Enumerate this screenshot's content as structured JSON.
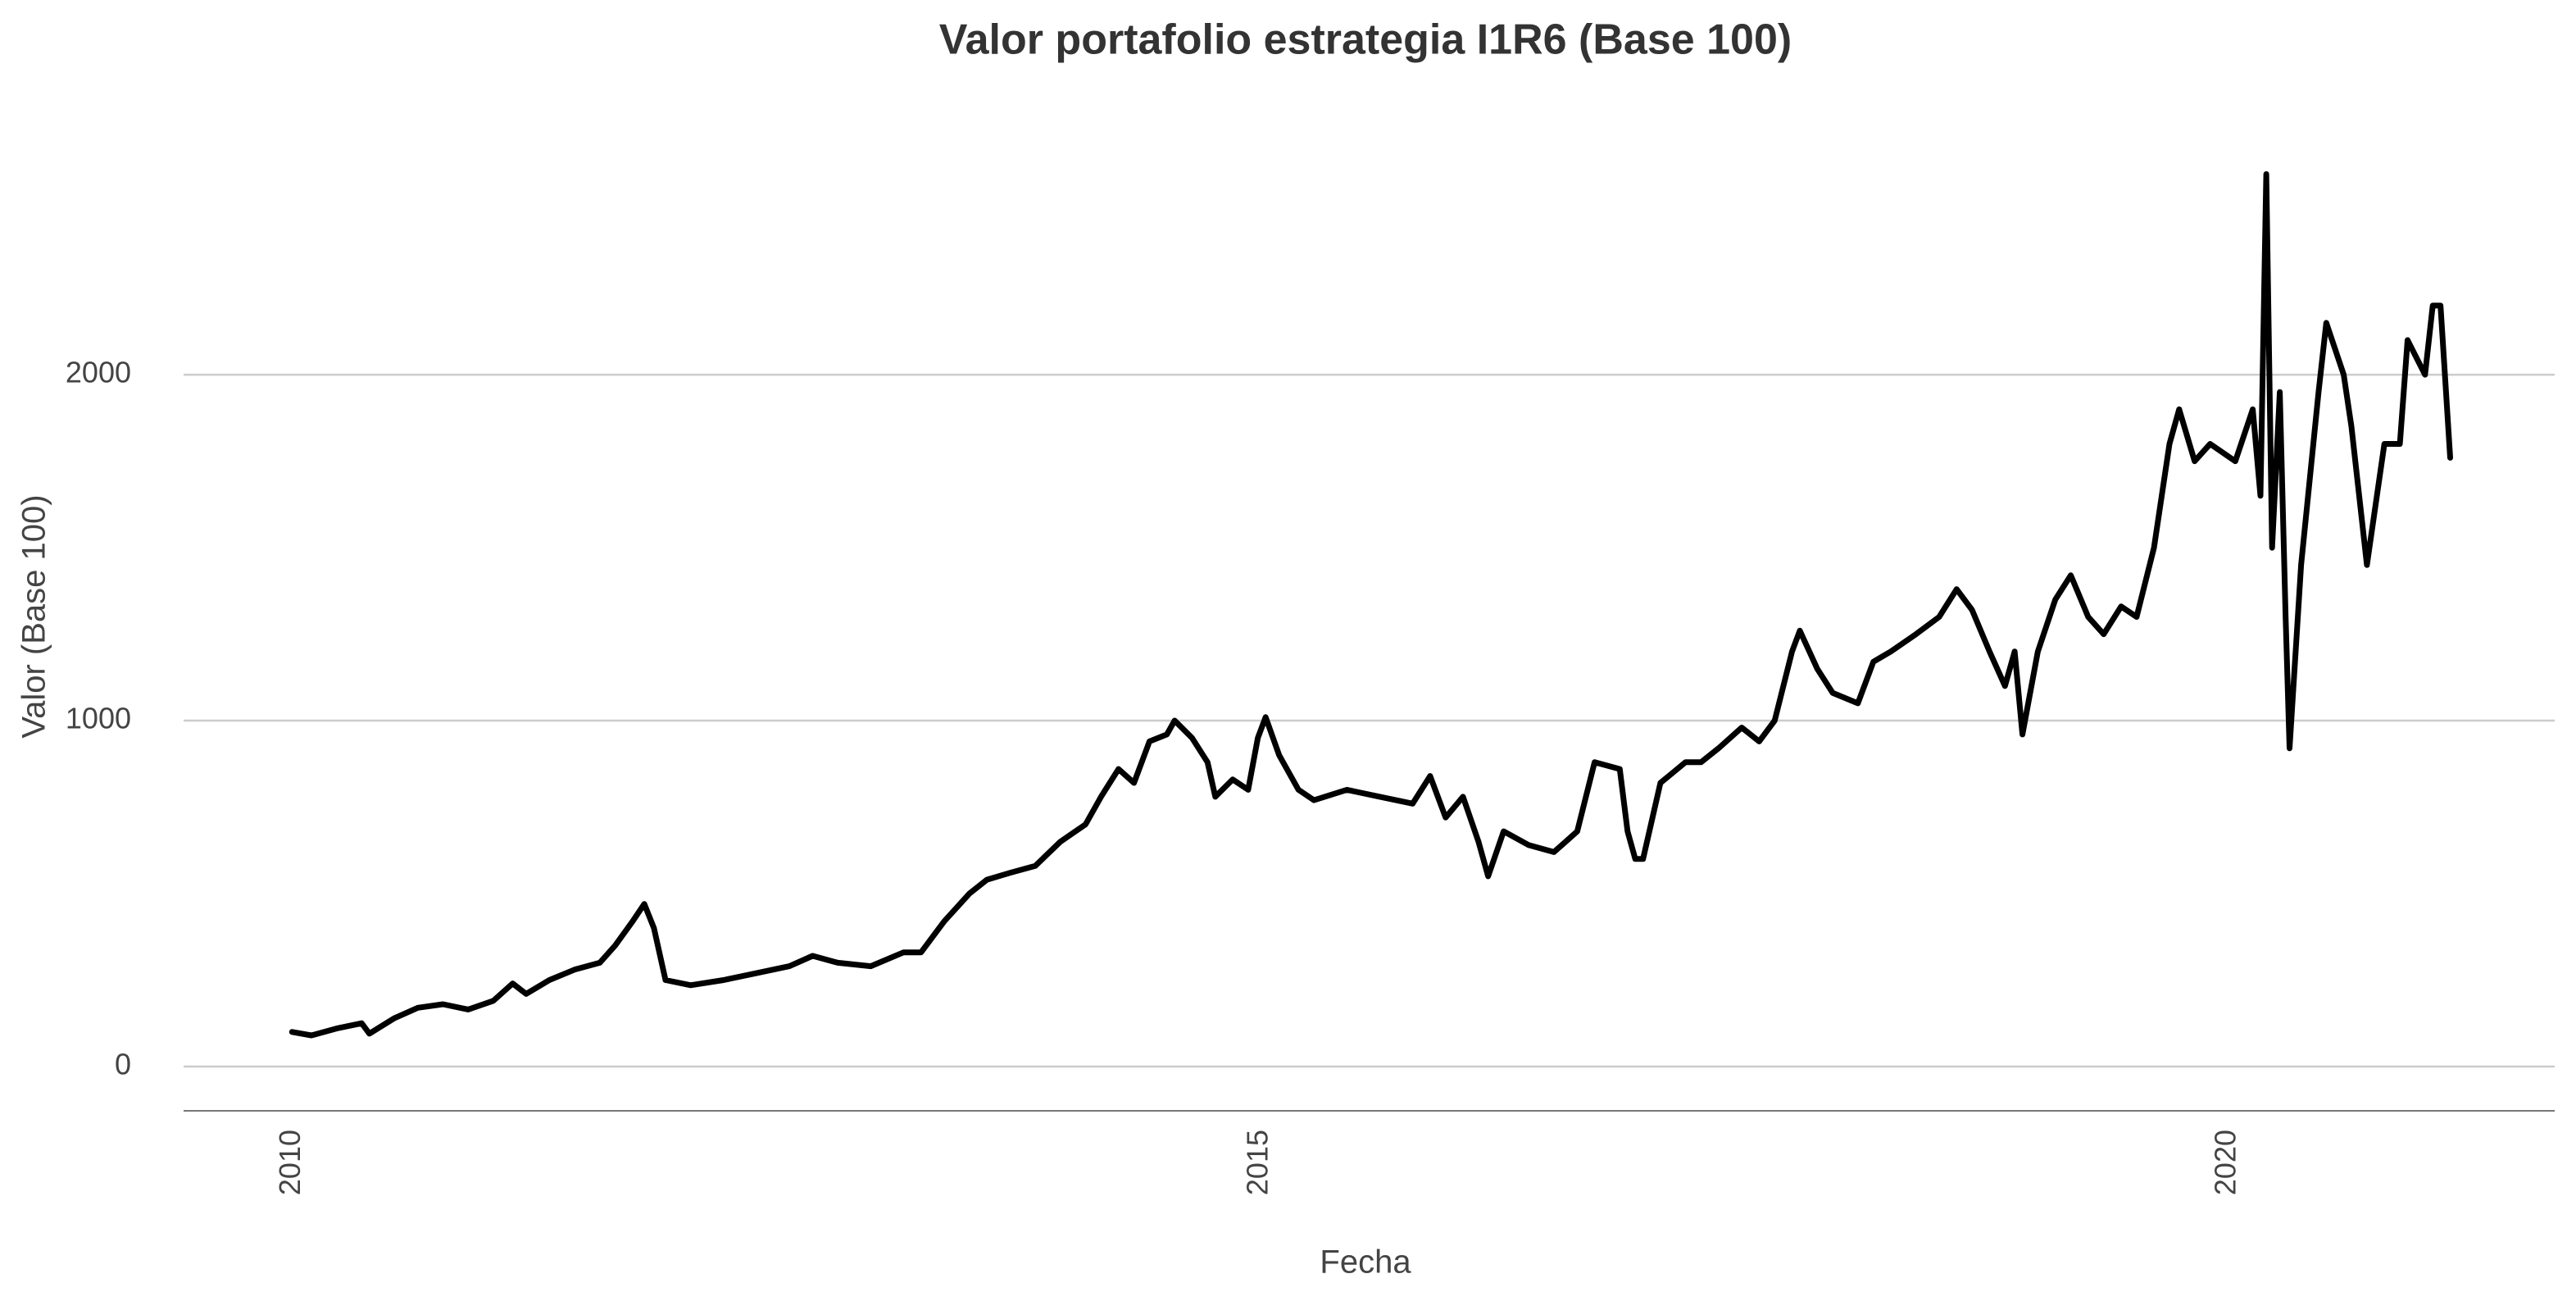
{
  "chart_data": {
    "type": "line",
    "title": "Valor portafolio estrategia I1R6 (Base 100)",
    "x_label": "Fecha",
    "y_label": "Valor (Base 100)",
    "grid": true,
    "xlim": [
      2009.44,
      2021.69
    ],
    "xticks": [
      2010,
      2015,
      2020
    ],
    "ylim": [
      -128,
      2633
    ],
    "yticks": [
      0,
      1000,
      2000
    ],
    "x": [
      2010.0,
      2010.1,
      2010.23,
      2010.36,
      2010.4,
      2010.53,
      2010.65,
      2010.78,
      2010.91,
      2011.04,
      2011.14,
      2011.21,
      2011.33,
      2011.46,
      2011.59,
      2011.67,
      2011.76,
      2011.82,
      2011.87,
      2011.93,
      2012.06,
      2012.23,
      2012.4,
      2012.57,
      2012.69,
      2012.82,
      2012.99,
      2013.16,
      2013.25,
      2013.37,
      2013.5,
      2013.59,
      2013.71,
      2013.84,
      2013.97,
      2014.1,
      2014.18,
      2014.27,
      2014.35,
      2014.43,
      2014.52,
      2014.56,
      2014.65,
      2014.73,
      2014.77,
      2014.86,
      2014.94,
      2014.99,
      2015.03,
      2015.1,
      2015.2,
      2015.28,
      2015.45,
      2015.62,
      2015.79,
      2015.88,
      2015.96,
      2016.05,
      2016.13,
      2016.18,
      2016.26,
      2016.39,
      2016.52,
      2016.64,
      2016.73,
      2016.86,
      2016.9,
      2016.94,
      2016.98,
      2017.07,
      2017.2,
      2017.28,
      2017.37,
      2017.49,
      2017.58,
      2017.66,
      2017.75,
      2017.79,
      2017.88,
      2017.96,
      2018.09,
      2018.17,
      2018.26,
      2018.39,
      2018.51,
      2018.6,
      2018.68,
      2018.77,
      2018.85,
      2018.9,
      2018.94,
      2019.02,
      2019.11,
      2019.19,
      2019.28,
      2019.36,
      2019.45,
      2019.53,
      2019.62,
      2019.7,
      2019.75,
      2019.83,
      2019.91,
      2020.04,
      2020.13,
      2020.17,
      2020.2,
      2020.23,
      2020.27,
      2020.3,
      2020.32,
      2020.38,
      2020.47,
      2020.51,
      2020.6,
      2020.64,
      2020.72,
      2020.81,
      2020.89,
      2020.93,
      2021.02,
      2021.06,
      2021.1,
      2021.15
    ],
    "series": [
      {
        "color": "#000000",
        "values": [
          100,
          90,
          110,
          125,
          95,
          140,
          170,
          180,
          165,
          190,
          240,
          210,
          250,
          280,
          300,
          350,
          420,
          470,
          400,
          250,
          235,
          250,
          270,
          290,
          320,
          300,
          290,
          330,
          330,
          420,
          500,
          540,
          560,
          580,
          650,
          700,
          780,
          860,
          820,
          940,
          960,
          1000,
          950,
          880,
          780,
          830,
          800,
          950,
          1010,
          900,
          800,
          770,
          800,
          780,
          760,
          840,
          720,
          780,
          650,
          550,
          680,
          640,
          620,
          680,
          880,
          860,
          680,
          600,
          600,
          820,
          880,
          880,
          920,
          980,
          940,
          1000,
          1200,
          1260,
          1150,
          1080,
          1050,
          1170,
          1200,
          1250,
          1300,
          1380,
          1320,
          1200,
          1100,
          1200,
          960,
          1200,
          1350,
          1420,
          1300,
          1250,
          1330,
          1300,
          1500,
          1800,
          1900,
          1750,
          1800,
          1750,
          1900,
          1650,
          2580,
          1500,
          1950,
          1300,
          920,
          1450,
          1950,
          2150,
          2000,
          1850,
          1450,
          1800,
          1800,
          2100,
          2000,
          2200,
          2200,
          1760
        ]
      }
    ]
  }
}
